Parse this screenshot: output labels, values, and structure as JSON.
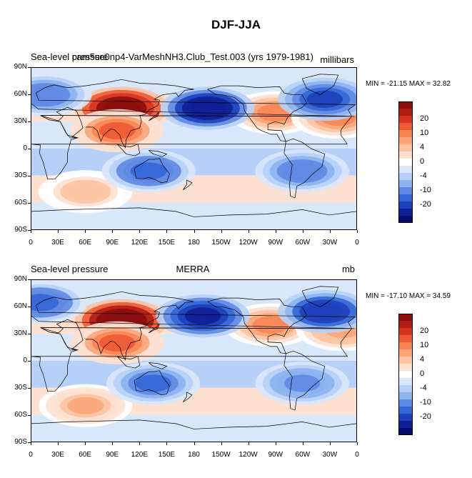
{
  "title": "DJF-JJA",
  "chart_data": [
    {
      "type": "heatmap",
      "title": "Sea-level pressure",
      "subtitle": "cam5se0np4-VarMeshNH3.Club_Test.003 (yrs 1979-1981)",
      "units": "millibars",
      "min_max": "MIN = -21.15 MAX =  32.82",
      "lat_ticks": [
        "90N",
        "60N",
        "30N",
        "0",
        "30S",
        "60S",
        "90S"
      ],
      "lon_ticks": [
        "0",
        "30E",
        "60E",
        "90E",
        "120E",
        "150E",
        "180",
        "150W",
        "120W",
        "90W",
        "60W",
        "30W",
        "0"
      ],
      "colorbar_labels": [
        "20",
        "10",
        "4",
        "0",
        "-4",
        "-10",
        "-20"
      ],
      "highs": [
        {
          "lon": 100,
          "lat": 45,
          "value": 25
        },
        {
          "lon": 95,
          "lat": 20,
          "value": 10
        },
        {
          "lon": 270,
          "lat": 40,
          "value": 8
        },
        {
          "lon": 60,
          "lat": -48,
          "value": 5
        },
        {
          "lon": 340,
          "lat": 35,
          "value": 8
        }
      ],
      "lows": [
        {
          "lon": 195,
          "lat": 45,
          "value": -18
        },
        {
          "lon": 325,
          "lat": 55,
          "value": -12
        },
        {
          "lon": 15,
          "lat": 60,
          "value": -8
        },
        {
          "lon": 130,
          "lat": -25,
          "value": -10
        },
        {
          "lon": 300,
          "lat": -25,
          "value": -8
        }
      ]
    },
    {
      "type": "heatmap",
      "title": "Sea-level pressure",
      "subtitle": "MERRA",
      "units": "mb",
      "min_max": "MIN = -17.10 MAX =  34.59",
      "lat_ticks": [
        "90N",
        "60N",
        "30N",
        "0",
        "30S",
        "60S",
        "90S"
      ],
      "lon_ticks": [
        "0",
        "30E",
        "60E",
        "90E",
        "120E",
        "150E",
        "180",
        "150W",
        "120W",
        "90W",
        "60W",
        "30W",
        "0"
      ],
      "colorbar_labels": [
        "20",
        "10",
        "4",
        "0",
        "-4",
        "-10",
        "-20"
      ],
      "highs": [
        {
          "lon": 100,
          "lat": 45,
          "value": 28
        },
        {
          "lon": 95,
          "lat": 20,
          "value": 10
        },
        {
          "lon": 265,
          "lat": 40,
          "value": 8
        },
        {
          "lon": 60,
          "lat": -50,
          "value": 6
        },
        {
          "lon": 345,
          "lat": 35,
          "value": 7
        }
      ],
      "lows": [
        {
          "lon": 190,
          "lat": 50,
          "value": -16
        },
        {
          "lon": 325,
          "lat": 55,
          "value": -14
        },
        {
          "lon": 10,
          "lat": 65,
          "value": -10
        },
        {
          "lon": 135,
          "lat": -25,
          "value": -9
        },
        {
          "lon": 300,
          "lat": -25,
          "value": -7
        }
      ]
    }
  ],
  "colorbar_colors": [
    "#8c0d0d",
    "#b01c12",
    "#d6331f",
    "#ee5a35",
    "#f88552",
    "#fba578",
    "#fbc3a2",
    "#fde0cf",
    "#ffffff",
    "#d9e7fb",
    "#b6d0f7",
    "#8cb2f0",
    "#5f8ae3",
    "#3366d6",
    "#1d40bb",
    "#0f1f96",
    "#0a0a6e"
  ]
}
